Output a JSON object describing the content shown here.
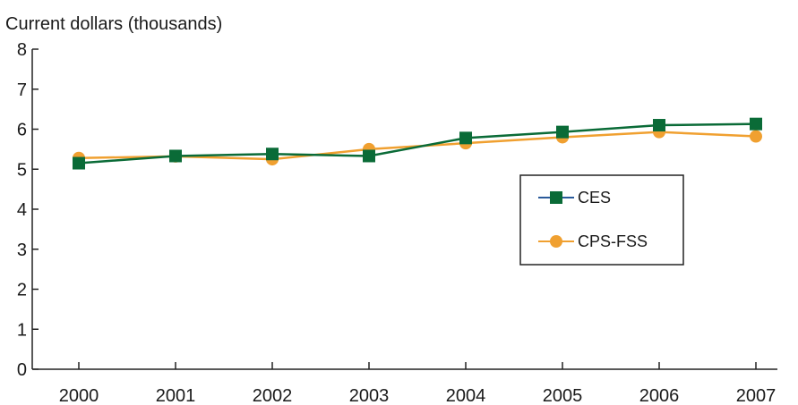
{
  "chart_data": {
    "type": "line",
    "ylabel": "Current dollars (thousands)",
    "xlabel": "",
    "title": "",
    "categories": [
      "2000",
      "2001",
      "2002",
      "2003",
      "2004",
      "2005",
      "2006",
      "2007"
    ],
    "ylim": [
      0,
      8
    ],
    "yticks": [
      "0",
      "1",
      "2",
      "3",
      "4",
      "5",
      "6",
      "7",
      "8"
    ],
    "grid": false,
    "legend_position": "right",
    "series": [
      {
        "name": "CES",
        "marker": "square",
        "color": "#0a6b37",
        "legend_line_color": "#2a5a9a",
        "values": [
          5.15,
          5.33,
          5.38,
          5.33,
          5.78,
          5.93,
          6.1,
          6.13
        ]
      },
      {
        "name": "CPS-FSS",
        "marker": "circle",
        "color": "#f0a030",
        "legend_line_color": "#f0a030",
        "values": [
          5.28,
          5.32,
          5.25,
          5.5,
          5.65,
          5.8,
          5.93,
          5.82
        ]
      }
    ]
  }
}
